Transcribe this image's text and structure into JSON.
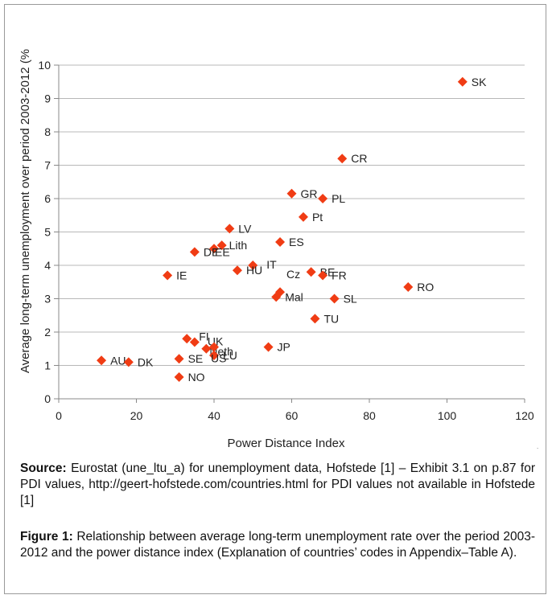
{
  "chart_data": {
    "type": "scatter",
    "xlabel": "Power Distance Index",
    "ylabel": "Average long-term unemployment over period 2003-2012 (%",
    "xlim": [
      0,
      120
    ],
    "ylim": [
      0,
      10
    ],
    "xticks": [
      0,
      20,
      40,
      60,
      80,
      100,
      120
    ],
    "yticks": [
      0,
      1,
      2,
      3,
      4,
      5,
      6,
      7,
      8,
      9,
      10
    ],
    "grid": "horizontal",
    "marker_color": "#f03c14",
    "points": [
      {
        "label": "SK",
        "x": 104,
        "y": 9.5
      },
      {
        "label": "CR",
        "x": 73,
        "y": 7.2
      },
      {
        "label": "GR",
        "x": 60,
        "y": 6.15
      },
      {
        "label": "PL",
        "x": 68,
        "y": 6.0
      },
      {
        "label": "LV",
        "x": 44,
        "y": 5.1
      },
      {
        "label": "Pt",
        "x": 63,
        "y": 5.45
      },
      {
        "label": "ES",
        "x": 57,
        "y": 4.7
      },
      {
        "label": "Lith",
        "x": 42,
        "y": 4.6
      },
      {
        "label": "EE",
        "x": 40,
        "y": 4.5
      },
      {
        "label": "DE",
        "x": 35,
        "y": 4.4
      },
      {
        "label": "IT",
        "x": 50,
        "y": 4.0
      },
      {
        "label": "HU",
        "x": 46,
        "y": 3.85
      },
      {
        "label": "BE",
        "x": 65,
        "y": 3.8
      },
      {
        "label": "FR",
        "x": 68,
        "y": 3.7
      },
      {
        "label": "IE",
        "x": 28,
        "y": 3.7
      },
      {
        "label": "Cz",
        "x": 57,
        "y": 3.2
      },
      {
        "label": "Mal",
        "x": 56,
        "y": 3.05
      },
      {
        "label": "SL",
        "x": 71,
        "y": 3.0
      },
      {
        "label": "RO",
        "x": 90,
        "y": 3.35
      },
      {
        "label": "TU",
        "x": 66,
        "y": 2.4
      },
      {
        "label": "FI",
        "x": 33,
        "y": 1.8
      },
      {
        "label": "UK",
        "x": 35,
        "y": 1.7
      },
      {
        "label": "Neth",
        "x": 38,
        "y": 1.5
      },
      {
        "label": "JP",
        "x": 54,
        "y": 1.55
      },
      {
        "label": "LU",
        "x": 40,
        "y": 1.3
      },
      {
        "label": "SE",
        "x": 31,
        "y": 1.2
      },
      {
        "label": "AU",
        "x": 11,
        "y": 1.15
      },
      {
        "label": "DK",
        "x": 18,
        "y": 1.1
      },
      {
        "label": "US",
        "x": 40,
        "y": 1.55
      },
      {
        "label": "NO",
        "x": 31,
        "y": 0.65
      }
    ]
  },
  "source": {
    "label": "Source:",
    "text": " Eurostat (une_ltu_a) for unemployment data, Hofstede [1] – Exhibit 3.1 on p.87 for PDI values, http://geert-hofstede.com/countries.html for PDI values not available in Hofstede [1]"
  },
  "figure": {
    "label": "Figure 1:",
    "text": " Relationship between average long-term unemployment rate over the period 2003-2012 and the power distance index (Explanation of countries’ codes in Appendix–Table A)."
  }
}
